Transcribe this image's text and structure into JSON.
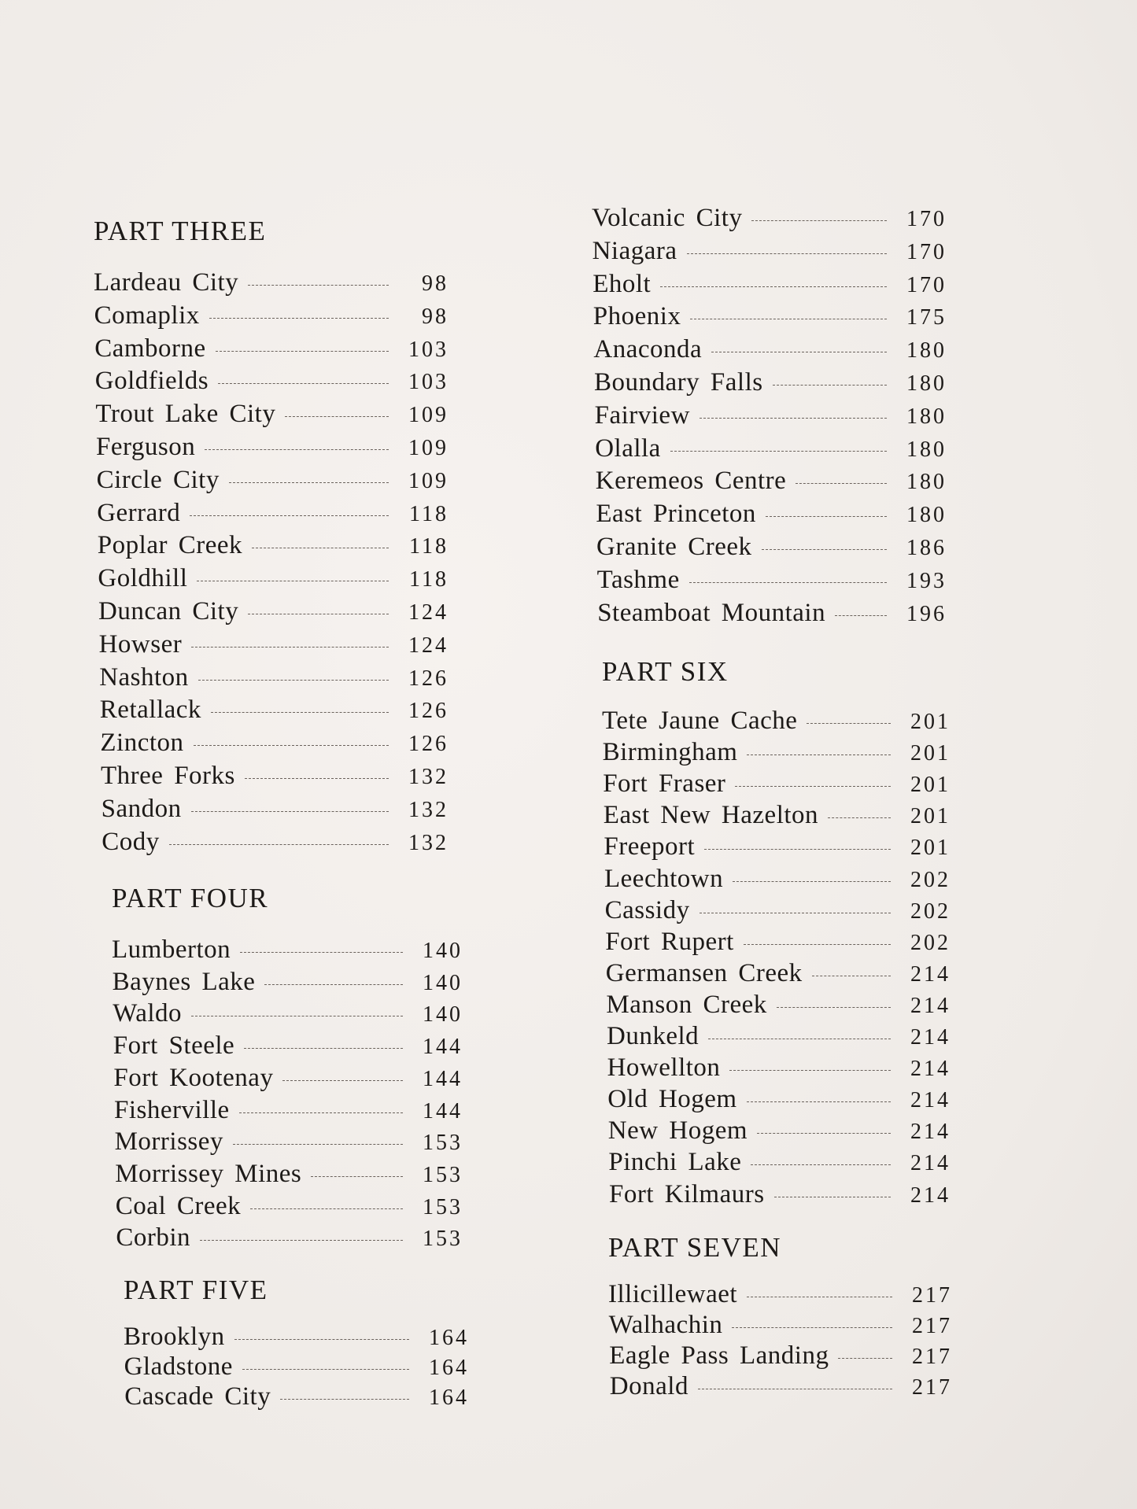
{
  "left_column": [
    {
      "heading": "PART THREE",
      "entries": [
        {
          "name": "Lardeau City",
          "page": "98"
        },
        {
          "name": "Comaplix",
          "page": "98"
        },
        {
          "name": "Camborne",
          "page": "103"
        },
        {
          "name": "Goldfields",
          "page": "103"
        },
        {
          "name": "Trout Lake City",
          "page": "109"
        },
        {
          "name": "Ferguson",
          "page": "109"
        },
        {
          "name": "Circle City",
          "page": "109"
        },
        {
          "name": "Gerrard",
          "page": "118"
        },
        {
          "name": "Poplar Creek",
          "page": "118"
        },
        {
          "name": "Goldhill",
          "page": "118"
        },
        {
          "name": "Duncan City",
          "page": "124"
        },
        {
          "name": "Howser",
          "page": "124"
        },
        {
          "name": "Nashton",
          "page": "126"
        },
        {
          "name": "Retallack",
          "page": "126"
        },
        {
          "name": "Zincton",
          "page": "126"
        },
        {
          "name": "Three Forks",
          "page": "132"
        },
        {
          "name": "Sandon",
          "page": "132"
        },
        {
          "name": "Cody",
          "page": "132"
        }
      ]
    },
    {
      "heading": "PART FOUR",
      "entries": [
        {
          "name": "Lumberton",
          "page": "140"
        },
        {
          "name": "Baynes Lake",
          "page": "140"
        },
        {
          "name": "Waldo",
          "page": "140"
        },
        {
          "name": "Fort Steele",
          "page": "144"
        },
        {
          "name": "Fort Kootenay",
          "page": "144"
        },
        {
          "name": "Fisherville",
          "page": "144"
        },
        {
          "name": "Morrissey",
          "page": "153"
        },
        {
          "name": "Morrissey Mines",
          "page": "153"
        },
        {
          "name": "Coal Creek",
          "page": "153"
        },
        {
          "name": "Corbin",
          "page": "153"
        }
      ]
    },
    {
      "heading": "PART FIVE",
      "entries": [
        {
          "name": "Brooklyn",
          "page": "164"
        },
        {
          "name": "Gladstone",
          "page": "164"
        },
        {
          "name": "Cascade City",
          "page": "164"
        }
      ]
    }
  ],
  "right_column": [
    {
      "heading": "",
      "entries": [
        {
          "name": "Volcanic City",
          "page": "170"
        },
        {
          "name": "Niagara",
          "page": "170"
        },
        {
          "name": "Eholt",
          "page": "170"
        },
        {
          "name": "Phoenix",
          "page": "175"
        },
        {
          "name": "Anaconda",
          "page": "180"
        },
        {
          "name": "Boundary Falls",
          "page": "180"
        },
        {
          "name": "Fairview",
          "page": "180"
        },
        {
          "name": "Olalla",
          "page": "180"
        },
        {
          "name": "Keremeos Centre",
          "page": "180"
        },
        {
          "name": "East Princeton",
          "page": "180"
        },
        {
          "name": "Granite Creek",
          "page": "186"
        },
        {
          "name": "Tashme",
          "page": "193"
        },
        {
          "name": "Steamboat Mountain",
          "page": "196"
        }
      ]
    },
    {
      "heading": "PART SIX",
      "entries": [
        {
          "name": "Tete Jaune Cache",
          "page": "201"
        },
        {
          "name": "Birmingham",
          "page": "201"
        },
        {
          "name": "Fort Fraser",
          "page": "201"
        },
        {
          "name": "East New Hazelton",
          "page": "201"
        },
        {
          "name": "Freeport",
          "page": "201"
        },
        {
          "name": "Leechtown",
          "page": "202"
        },
        {
          "name": "Cassidy",
          "page": "202"
        },
        {
          "name": "Fort Rupert",
          "page": "202"
        },
        {
          "name": "Germansen Creek",
          "page": "214"
        },
        {
          "name": "Manson Creek",
          "page": "214"
        },
        {
          "name": "Dunkeld",
          "page": "214"
        },
        {
          "name": "Howellton",
          "page": "214"
        },
        {
          "name": "Old Hogem",
          "page": "214"
        },
        {
          "name": "New Hogem",
          "page": "214"
        },
        {
          "name": "Pinchi Lake",
          "page": "214"
        },
        {
          "name": "Fort Kilmaurs",
          "page": "214"
        }
      ]
    },
    {
      "heading": "PART SEVEN",
      "entries": [
        {
          "name": "Illicillewaet",
          "page": "217"
        },
        {
          "name": "Walhachin",
          "page": "217"
        },
        {
          "name": "Eagle Pass Landing",
          "page": "217"
        },
        {
          "name": "Donald",
          "page": "217"
        }
      ]
    }
  ]
}
